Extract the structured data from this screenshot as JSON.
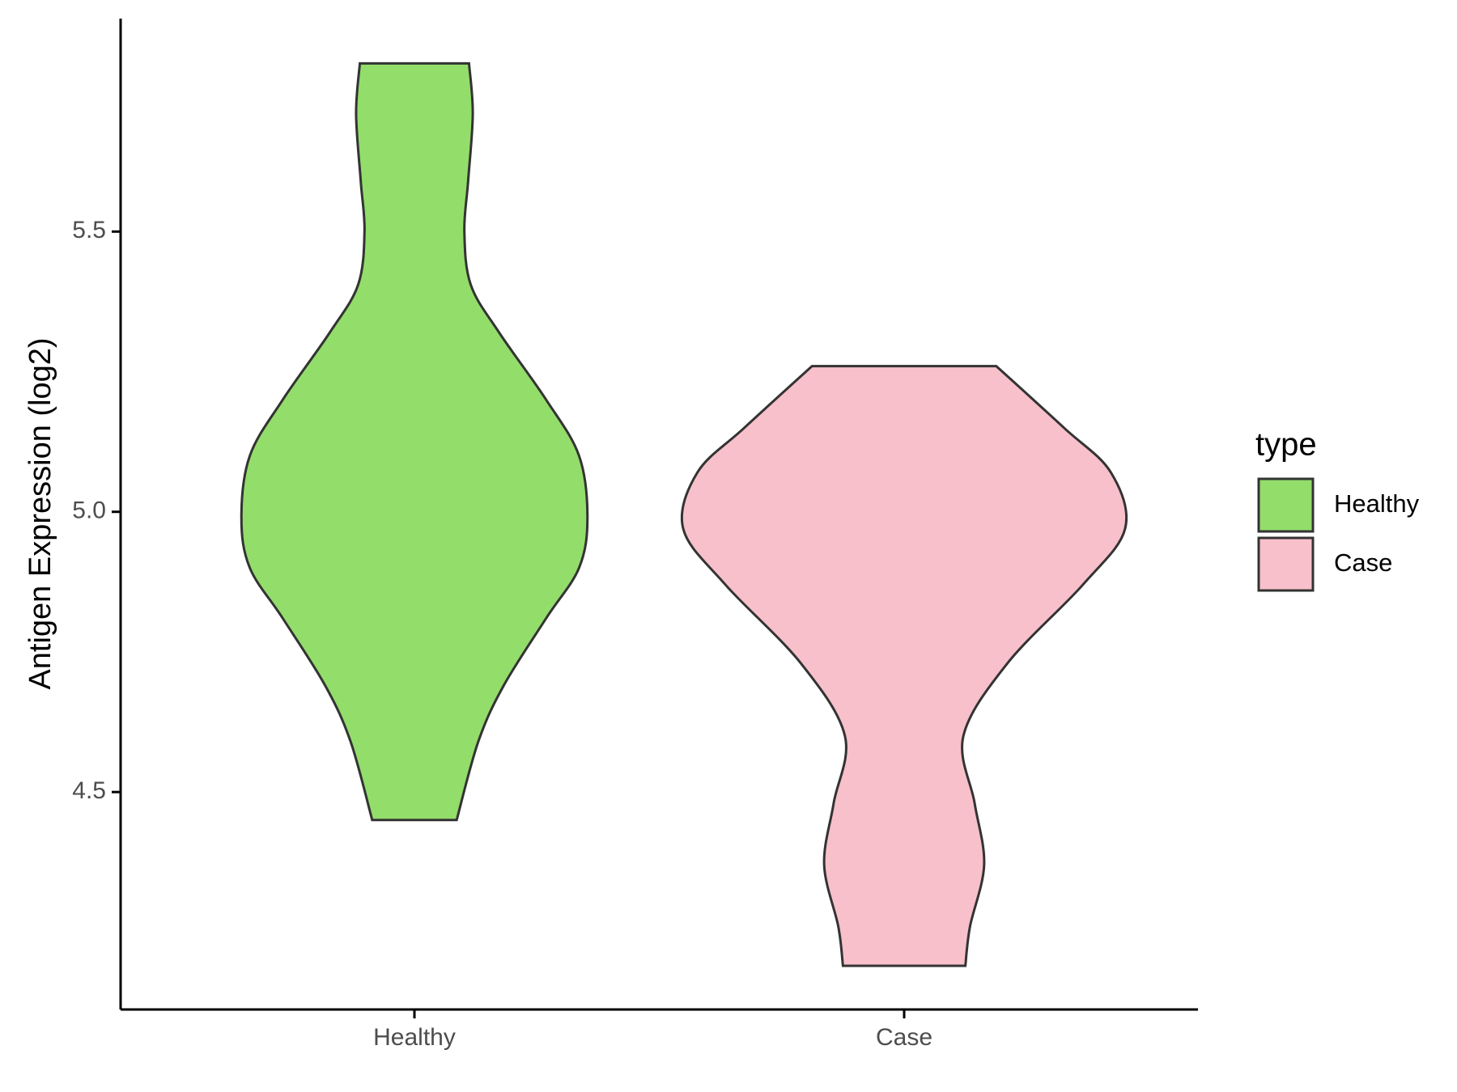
{
  "chart_data": {
    "type": "violin",
    "y_label": "Antigen Expression (log2)",
    "categories": [
      "Healthy",
      "Case"
    ],
    "series": [
      {
        "name": "Healthy",
        "color": "#93dd6b",
        "y": [
          5.8,
          5.71,
          5.59,
          5.5,
          5.405,
          5.32,
          5.2,
          5.1,
          4.99,
          4.9,
          4.81,
          4.69,
          4.59,
          4.45
        ],
        "density": [
          0.247,
          0.264,
          0.243,
          0.226,
          0.255,
          0.383,
          0.596,
          0.745,
          0.783,
          0.745,
          0.596,
          0.404,
          0.289,
          0.191
        ]
      },
      {
        "name": "Case",
        "color": "#f7c0cb",
        "y": [
          5.26,
          5.15,
          5.07,
          4.97,
          4.87,
          4.73,
          4.6,
          4.48,
          4.37,
          4.26,
          4.19
        ],
        "density": [
          0.417,
          0.723,
          0.936,
          1.0,
          0.809,
          0.468,
          0.268,
          0.319,
          0.362,
          0.298,
          0.277
        ]
      }
    ],
    "ylim": [
      4.112,
      5.88
    ],
    "yticks": [
      4.5,
      {
        "value": 5,
        "label": "5.0"
      },
      5.5
    ],
    "legend_title": "type",
    "legend_position": "right"
  }
}
